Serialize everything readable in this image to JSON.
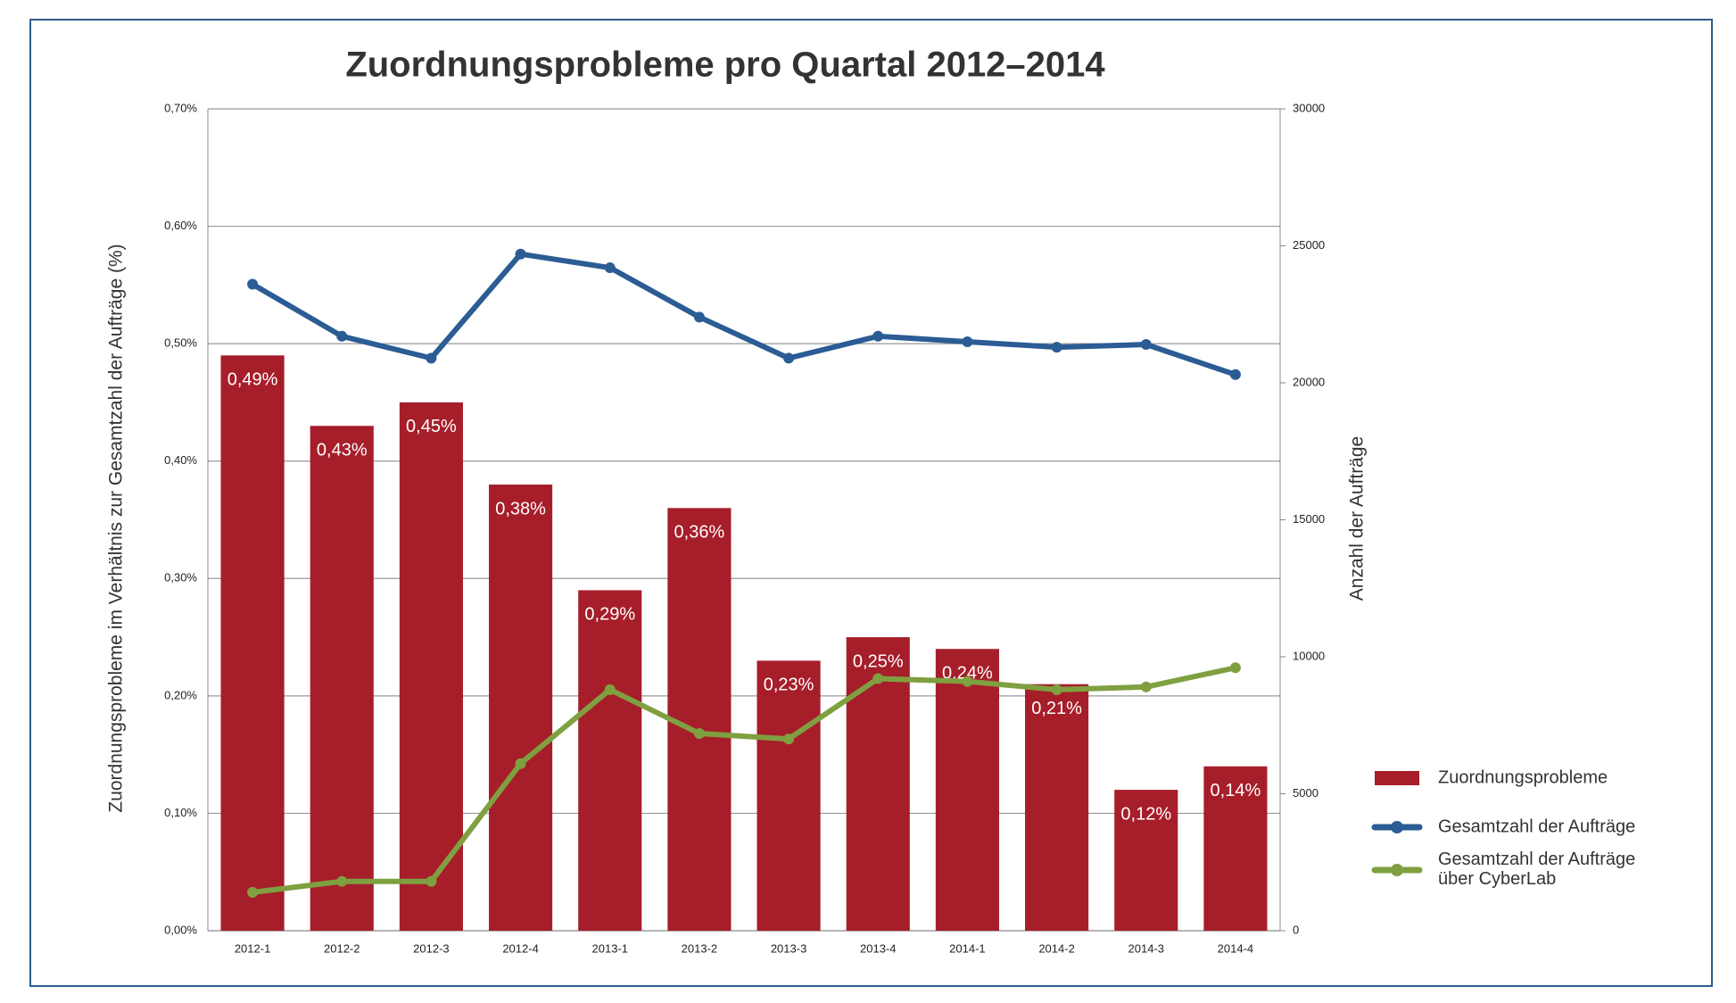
{
  "chart_data": {
    "type": "bar",
    "title": "Zuordnungsprobleme pro Quartal 2012–2014",
    "y_label": "Zuordnungsprobleme im Verhältnis zur Gesamtzahl der Aufträge (%)",
    "y2_label": "Anzahl der Aufträge",
    "categories": [
      "2012-1",
      "2012-2",
      "2012-3",
      "2012-4",
      "2013-1",
      "2013-2",
      "2013-3",
      "2013-4",
      "2014-1",
      "2014-2",
      "2014-3",
      "2014-4"
    ],
    "series": [
      {
        "name": "Zuordnungsprobleme",
        "type": "bar",
        "color": "#a61e2a",
        "values": [
          0.49,
          0.43,
          0.45,
          0.38,
          0.29,
          0.36,
          0.23,
          0.25,
          0.24,
          0.21,
          0.12,
          0.14
        ],
        "value_labels": [
          "0,49%",
          "0,43%",
          "0,45%",
          "0,38%",
          "0,29%",
          "0,36%",
          "0,23%",
          "0,25%",
          "0,24%",
          "0,21%",
          "0,12%",
          "0,14%"
        ]
      },
      {
        "name": "Gesamtzahl der Aufträge",
        "type": "line",
        "axis": "y2",
        "color": "#2b5c94",
        "values": [
          23600,
          21700,
          20900,
          24700,
          24200,
          22400,
          20900,
          21700,
          21500,
          21300,
          21400,
          20300
        ]
      },
      {
        "name": "Gesamtzahl der Aufträge\nüber CyberLab",
        "type": "line",
        "axis": "y2",
        "color": "#7fa040",
        "values": [
          1400,
          1800,
          1800,
          6100,
          8800,
          7200,
          7000,
          9200,
          9100,
          8800,
          8900,
          9600
        ]
      }
    ],
    "ylim": [
      0,
      0.7
    ],
    "yticks": [
      {
        "value": 0,
        "label": "0,00%"
      },
      {
        "value": 0.1,
        "label": "0,10%"
      },
      {
        "value": 0.2,
        "label": "0,20%"
      },
      {
        "value": 0.3,
        "label": "0,30%"
      },
      {
        "value": 0.4,
        "label": "0,40%"
      },
      {
        "value": 0.5,
        "label": "0,50%"
      },
      {
        "value": 0.6,
        "label": "0,60%"
      },
      {
        "value": 0.7,
        "label": "0,70%"
      }
    ],
    "y2lim": [
      0,
      30000
    ],
    "y2ticks": [
      0,
      5000,
      10000,
      15000,
      20000,
      25000,
      30000
    ],
    "grid": true,
    "legend": "right"
  }
}
